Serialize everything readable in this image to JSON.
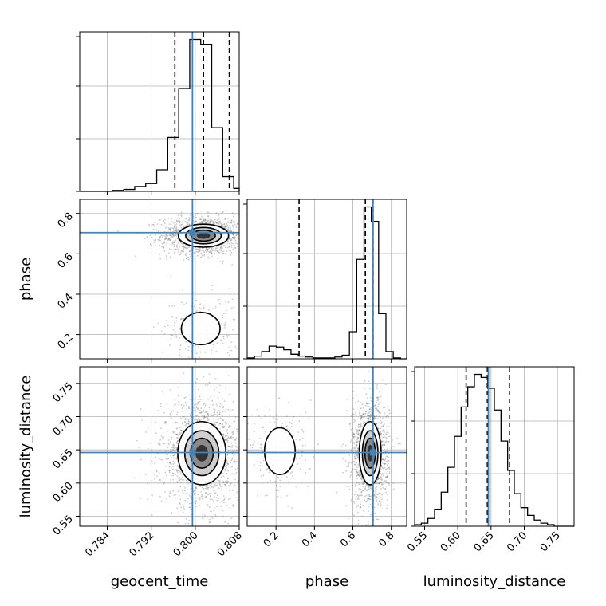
{
  "chart_data": {
    "type": "corner",
    "parameters": [
      "geocent_time",
      "phase",
      "luminosity_distance"
    ],
    "truths": {
      "geocent_time": 0.7995,
      "phase": 0.705,
      "luminosity_distance": 0.646
    },
    "colors": {
      "truth": "#4682b4",
      "hist": "#000000",
      "scatter": "#555555"
    },
    "grid": true,
    "panels": {
      "geocent_time_hist": {
        "xlim": [
          0.779,
          0.808
        ],
        "xticks": [
          0.784,
          0.792,
          0.8,
          0.808
        ],
        "xtick_labels": [
          "0.784",
          "0.792",
          "0.800",
          "0.808"
        ],
        "quantiles": [
          0.7963,
          0.8015,
          0.8062
        ],
        "bin_edges": [
          0.779,
          0.781,
          0.783,
          0.785,
          0.787,
          0.789,
          0.791,
          0.793,
          0.795,
          0.797,
          0.799,
          0.801,
          0.803,
          0.805,
          0.807,
          0.808
        ],
        "counts": [
          0,
          0,
          0,
          1,
          2,
          5,
          8,
          22,
          55,
          105,
          155,
          150,
          65,
          15,
          3
        ]
      },
      "phase_hist": {
        "xlim": [
          0.05,
          0.88
        ],
        "xticks": [
          0.2,
          0.4,
          0.6,
          0.8
        ],
        "xtick_labels": [
          "0.2",
          "0.4",
          "0.6",
          "0.8"
        ],
        "quantiles": [
          0.32,
          0.665,
          0.705
        ],
        "bin_edges": [
          0.05,
          0.088,
          0.126,
          0.164,
          0.202,
          0.24,
          0.278,
          0.316,
          0.354,
          0.392,
          0.43,
          0.468,
          0.506,
          0.544,
          0.582,
          0.62,
          0.658,
          0.696,
          0.734,
          0.772,
          0.81,
          0.848,
          0.88
        ],
        "counts": [
          1,
          3,
          8,
          14,
          13,
          10,
          5,
          3,
          2,
          1,
          1,
          1,
          2,
          4,
          30,
          110,
          168,
          152,
          50,
          8,
          1,
          0
        ]
      },
      "luminosity_distance_hist": {
        "xlim": [
          0.535,
          0.775
        ],
        "xticks": [
          0.55,
          0.6,
          0.65,
          0.7,
          0.75
        ],
        "xtick_labels": [
          "0.55",
          "0.60",
          "0.65",
          "0.70",
          "0.75"
        ],
        "quantiles": [
          0.6125,
          0.6445,
          0.678
        ],
        "bin_edges": [
          0.535,
          0.545,
          0.555,
          0.565,
          0.575,
          0.585,
          0.595,
          0.605,
          0.615,
          0.625,
          0.635,
          0.645,
          0.655,
          0.665,
          0.675,
          0.685,
          0.695,
          0.705,
          0.715,
          0.725,
          0.735,
          0.745,
          0.755,
          0.775
        ],
        "counts": [
          1,
          2,
          5,
          11,
          22,
          38,
          58,
          77,
          90,
          98,
          96,
          89,
          75,
          55,
          36,
          21,
          12,
          7,
          4,
          2,
          1,
          0,
          0
        ]
      },
      "phase_vs_geocent_time": {
        "xlim": [
          0.779,
          0.808
        ],
        "ylim": [
          0.08,
          0.87
        ],
        "yticks": [
          0.2,
          0.4,
          0.6,
          0.8
        ],
        "ytick_labels": [
          "0.2",
          "0.4",
          "0.6",
          "0.8"
        ],
        "modes": [
          {
            "x": 0.8015,
            "y": 0.69,
            "sx": 0.0024,
            "sy": 0.03,
            "weight": 0.85
          },
          {
            "x": 0.801,
            "y": 0.23,
            "sx": 0.0022,
            "sy": 0.05,
            "weight": 0.15
          }
        ]
      },
      "luminosity_distance_vs_geocent_time": {
        "xlim": [
          0.779,
          0.808
        ],
        "ylim": [
          0.535,
          0.775
        ],
        "yticks": [
          0.55,
          0.6,
          0.65,
          0.7,
          0.75
        ],
        "ytick_labels": [
          "0.55",
          "0.60",
          "0.65",
          "0.70",
          "0.75"
        ],
        "modes": [
          {
            "x": 0.8012,
            "y": 0.645,
            "sx": 0.0023,
            "sy": 0.025,
            "weight": 1.0
          }
        ]
      },
      "luminosity_distance_vs_phase": {
        "xlim": [
          0.05,
          0.88
        ],
        "ylim": [
          0.535,
          0.775
        ],
        "modes": [
          {
            "x": 0.69,
            "y": 0.645,
            "sx": 0.03,
            "sy": 0.025,
            "weight": 0.85
          },
          {
            "x": 0.22,
            "y": 0.648,
            "sx": 0.05,
            "sy": 0.022,
            "weight": 0.15
          }
        ]
      }
    }
  }
}
